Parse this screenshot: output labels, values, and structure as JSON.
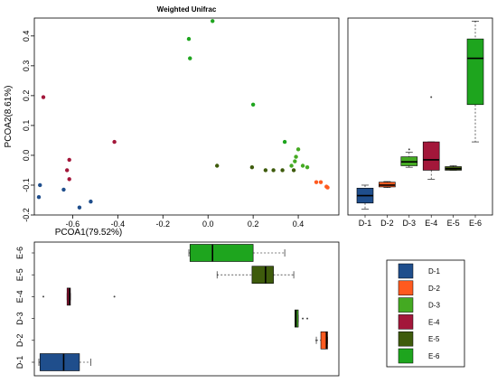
{
  "chart_data": {
    "type": "scatter",
    "title": "Weighted Unifrac",
    "xlabel": "PCOA1(79.52%)",
    "ylabel": "PCOA2(8.61%)",
    "xlim": [
      -0.77,
      0.58
    ],
    "ylim": [
      -0.2,
      0.46
    ],
    "xticks": [
      "-0.6",
      "-0.4",
      "-0.2",
      "0.0",
      "0.2",
      "0.4"
    ],
    "yticks": [
      "-0.2",
      "-0.1",
      "0.0",
      "0.1",
      "0.2",
      "0.3",
      "0.4"
    ],
    "groups": [
      {
        "name": "D-1",
        "color": "#1f4e8c"
      },
      {
        "name": "D-2",
        "color": "#ff5a1f"
      },
      {
        "name": "D-3",
        "color": "#44aa22"
      },
      {
        "name": "E-4",
        "color": "#a3173a"
      },
      {
        "name": "E-5",
        "color": "#3e5b0c"
      },
      {
        "name": "E-6",
        "color": "#1ea51e"
      }
    ],
    "series": [
      {
        "group": "D-1",
        "points": [
          [
            -0.745,
            -0.1
          ],
          [
            -0.75,
            -0.14
          ],
          [
            -0.64,
            -0.115
          ],
          [
            -0.57,
            -0.175
          ],
          [
            -0.52,
            -0.155
          ]
        ]
      },
      {
        "group": "D-2",
        "points": [
          [
            0.48,
            -0.09
          ],
          [
            0.5,
            -0.09
          ],
          [
            0.525,
            -0.105
          ],
          [
            0.53,
            -0.108
          ]
        ]
      },
      {
        "group": "D-3",
        "points": [
          [
            0.37,
            -0.035
          ],
          [
            0.385,
            -0.02
          ],
          [
            0.39,
            -0.005
          ],
          [
            0.4,
            0.02
          ],
          [
            0.42,
            -0.035
          ],
          [
            0.44,
            -0.04
          ]
        ]
      },
      {
        "group": "E-4",
        "points": [
          [
            -0.73,
            0.195
          ],
          [
            -0.615,
            -0.015
          ],
          [
            -0.625,
            -0.05
          ],
          [
            -0.615,
            -0.08
          ],
          [
            -0.415,
            0.045
          ]
        ]
      },
      {
        "group": "E-5",
        "points": [
          [
            0.04,
            -0.035
          ],
          [
            0.195,
            -0.04
          ],
          [
            0.255,
            -0.05
          ],
          [
            0.29,
            -0.05
          ],
          [
            0.33,
            -0.05
          ],
          [
            0.38,
            -0.05
          ]
        ]
      },
      {
        "group": "E-6",
        "points": [
          [
            -0.085,
            0.39
          ],
          [
            0.02,
            0.45
          ],
          [
            -0.08,
            0.325
          ],
          [
            0.2,
            0.17
          ],
          [
            0.34,
            0.045
          ]
        ]
      }
    ],
    "y_boxplot": {
      "categories": [
        "D-1",
        "D-2",
        "D-3",
        "E-4",
        "E-5",
        "E-6"
      ],
      "ylim": [
        -0.2,
        0.46
      ],
      "boxes": [
        {
          "whisker_low": -0.18,
          "q1": -0.16,
          "median": -0.135,
          "q3": -0.11,
          "whisker_high": -0.1,
          "outliers": []
        },
        {
          "whisker_low": -0.108,
          "q1": -0.106,
          "median": -0.1,
          "q3": -0.09,
          "whisker_high": -0.088,
          "outliers": []
        },
        {
          "whisker_low": -0.04,
          "q1": -0.035,
          "median": -0.022,
          "q3": -0.005,
          "whisker_high": 0.01,
          "outliers": [
            0.02
          ]
        },
        {
          "whisker_low": -0.08,
          "q1": -0.05,
          "median": -0.015,
          "q3": 0.045,
          "whisker_high": 0.045,
          "outliers": [
            0.195
          ]
        },
        {
          "whisker_low": -0.05,
          "q1": -0.05,
          "median": -0.045,
          "q3": -0.038,
          "whisker_high": -0.035,
          "outliers": []
        },
        {
          "whisker_low": 0.045,
          "q1": 0.17,
          "median": 0.325,
          "q3": 0.39,
          "whisker_high": 0.45,
          "outliers": []
        }
      ]
    },
    "x_boxplot": {
      "categories": [
        "D-1",
        "D-2",
        "D-3",
        "E-4",
        "E-5",
        "E-6"
      ],
      "xlim": [
        -0.77,
        0.58
      ],
      "boxes": [
        {
          "whisker_low": -0.75,
          "q1": -0.745,
          "median": -0.64,
          "q3": -0.57,
          "whisker_high": -0.52,
          "outliers": []
        },
        {
          "whisker_low": 0.48,
          "q1": 0.5,
          "median": 0.525,
          "q3": 0.53,
          "whisker_high": 0.53,
          "outliers": [
            0.48
          ]
        },
        {
          "whisker_low": 0.385,
          "q1": 0.385,
          "median": 0.39,
          "q3": 0.4,
          "whisker_high": 0.4,
          "outliers": [
            0.42,
            0.44
          ]
        },
        {
          "whisker_low": -0.625,
          "q1": -0.625,
          "median": -0.615,
          "q3": -0.61,
          "whisker_high": -0.61,
          "outliers": [
            -0.73,
            -0.415
          ]
        },
        {
          "whisker_low": 0.04,
          "q1": 0.195,
          "median": 0.255,
          "q3": 0.29,
          "whisker_high": 0.38,
          "outliers": []
        },
        {
          "whisker_low": -0.085,
          "q1": -0.08,
          "median": 0.02,
          "q3": 0.2,
          "whisker_high": 0.34,
          "outliers": []
        }
      ]
    },
    "legend": {
      "entries": [
        "D-1",
        "D-2",
        "D-3",
        "E-4",
        "E-5",
        "E-6"
      ],
      "position": "bottom-right"
    }
  }
}
